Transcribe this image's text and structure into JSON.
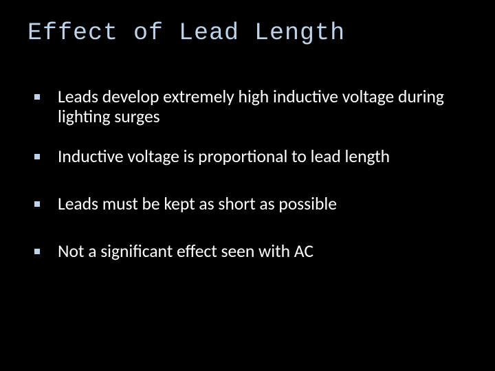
{
  "slide": {
    "title": "Effect of Lead Length",
    "bullets": [
      "Leads develop extremely high inductive voltage during lighting surges",
      "Inductive voltage is proportional to lead length",
      "Leads must be kept as short as possible",
      "Not a significant effect seen with AC"
    ],
    "colors": {
      "background": "#000000",
      "title_color": "#bcd3ea",
      "text_color": "#ffffff",
      "bullet_color": "#bcd3ea"
    },
    "typography": {
      "title_font": "Consolas",
      "title_fontsize": 35,
      "body_font": "Calibri",
      "body_fontsize": 25.5
    }
  }
}
